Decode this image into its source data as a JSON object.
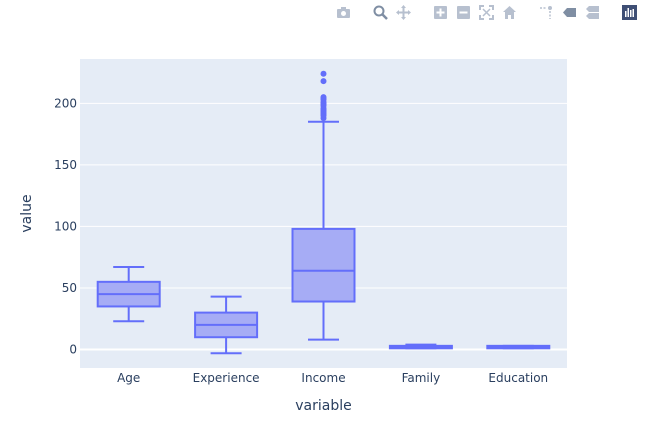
{
  "modebar": {
    "icons": [
      "camera-icon",
      "zoom-icon",
      "pan-icon",
      "zoom-in-icon",
      "zoom-out-icon",
      "autoscale-icon",
      "reset-axes-icon",
      "spike-lines-icon",
      "hover-closest-icon",
      "hover-compare-icon",
      "plotly-logo-icon"
    ],
    "icon_color": "#b7c0cf",
    "active_color": "#7f8ea3",
    "logo_color": "#3f4f75"
  },
  "chart_data": {
    "type": "box",
    "xlabel": "variable",
    "ylabel": "value",
    "categories": [
      "Age",
      "Experience",
      "Income",
      "Family",
      "Education"
    ],
    "ylim": [
      -15,
      236
    ],
    "yticks": [
      0,
      50,
      100,
      150,
      200
    ],
    "grid": true,
    "colors": {
      "box_line": "#636efa",
      "box_fill": "#a6acf5",
      "plot_bg": "#e5ecf6",
      "grid": "#ffffff"
    },
    "boxes": [
      {
        "name": "Age",
        "min": 23,
        "q1": 35,
        "median": 45,
        "q3": 55,
        "max": 67,
        "outliers": []
      },
      {
        "name": "Experience",
        "min": -3,
        "q1": 10,
        "median": 20,
        "q3": 30,
        "max": 43,
        "outliers": []
      },
      {
        "name": "Income",
        "min": 8,
        "q1": 39,
        "median": 64,
        "q3": 98,
        "max": 185,
        "outliers": [
          188,
          190,
          191,
          192,
          193,
          194,
          195,
          196,
          198,
          199,
          200,
          201,
          203,
          204,
          205,
          218,
          224
        ]
      },
      {
        "name": "Family",
        "min": 1,
        "q1": 1,
        "median": 2,
        "q3": 3,
        "max": 4,
        "outliers": []
      },
      {
        "name": "Education",
        "min": 1,
        "q1": 1,
        "median": 2,
        "q3": 3,
        "max": 3,
        "outliers": []
      }
    ]
  }
}
